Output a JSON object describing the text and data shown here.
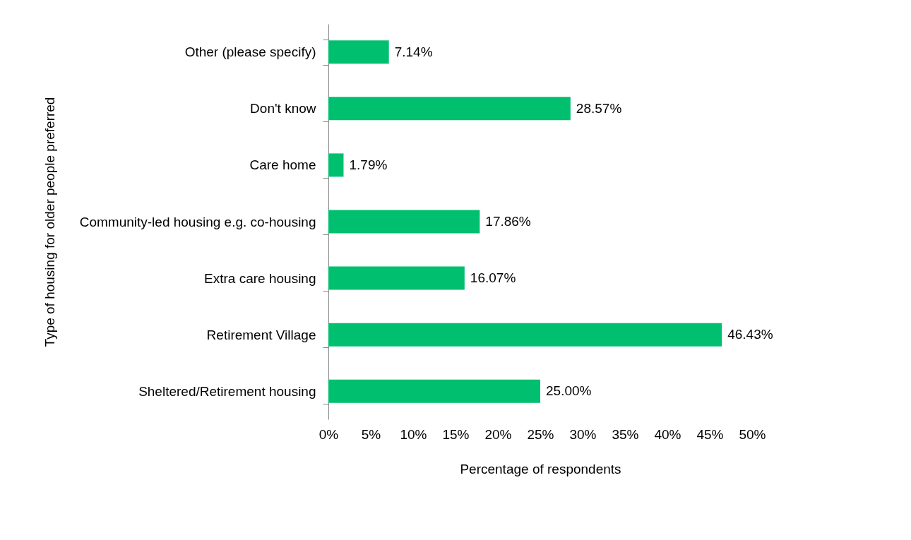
{
  "chart_data": {
    "type": "bar",
    "orientation": "horizontal",
    "ylabel": "Type of housing for older people preferred",
    "xlabel": "Percentage of respondents",
    "categories": [
      "Other (please specify)",
      "Don't know",
      "Care home",
      "Community-led housing e.g. co-housing",
      "Extra care housing",
      "Retirement Village",
      "Sheltered/Retirement  housing"
    ],
    "values": [
      7.14,
      28.57,
      1.79,
      17.86,
      16.07,
      46.43,
      25.0
    ],
    "value_labels": [
      "7.14%",
      "28.57%",
      "1.79%",
      "17.86%",
      "16.07%",
      "46.43%",
      "25.00%"
    ],
    "color": "#00bf6f",
    "xlim": [
      0,
      50
    ],
    "xticks": [
      {
        "value": 0,
        "label": "0%"
      },
      {
        "value": 5,
        "label": "5%"
      },
      {
        "value": 10,
        "label": "10%"
      },
      {
        "value": 15,
        "label": "15%"
      },
      {
        "value": 20,
        "label": "20%"
      },
      {
        "value": 25,
        "label": "25%"
      },
      {
        "value": 30,
        "label": "30%"
      },
      {
        "value": 35,
        "label": "35%"
      },
      {
        "value": 40,
        "label": "40%"
      },
      {
        "value": 45,
        "label": "45%"
      },
      {
        "value": 50,
        "label": "50%"
      }
    ],
    "grid": false
  }
}
